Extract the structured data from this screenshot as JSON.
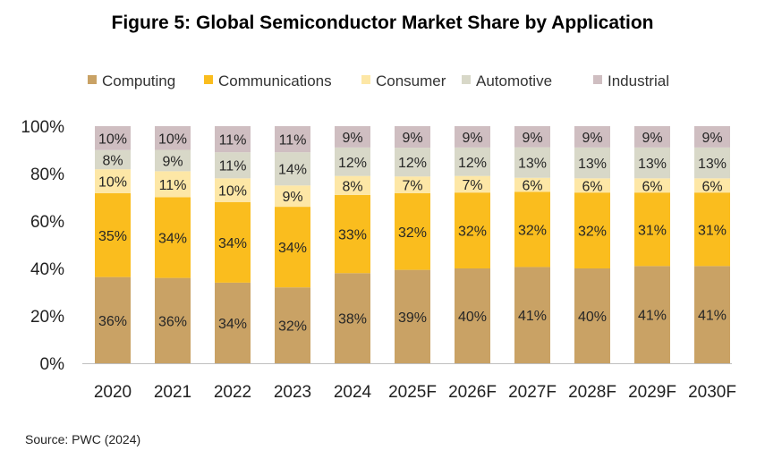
{
  "chart_data": {
    "type": "bar",
    "stacked": true,
    "title": "Figure 5: Global Semiconductor Market Share by Application",
    "categories": [
      "2020",
      "2021",
      "2022",
      "2023",
      "2024",
      "2025F",
      "2026F",
      "2027F",
      "2028F",
      "2029F",
      "2030F"
    ],
    "series": [
      {
        "name": "Computing",
        "color": "#C9A265",
        "values": [
          36,
          36,
          34,
          32,
          38,
          39,
          40,
          41,
          40,
          41,
          41
        ]
      },
      {
        "name": "Communications",
        "color": "#FABD1E",
        "values": [
          35,
          34,
          34,
          34,
          33,
          32,
          32,
          32,
          32,
          31,
          31
        ]
      },
      {
        "name": "Consumer",
        "color": "#FDE7A6",
        "values": [
          10,
          11,
          10,
          9,
          8,
          7,
          7,
          6,
          6,
          6,
          6
        ]
      },
      {
        "name": "Automotive",
        "color": "#D8D8C8",
        "values": [
          8,
          9,
          11,
          14,
          12,
          12,
          12,
          13,
          13,
          13,
          13
        ]
      },
      {
        "name": "Industrial",
        "color": "#CFBEC1",
        "values": [
          10,
          10,
          11,
          11,
          9,
          9,
          9,
          9,
          9,
          9,
          9
        ]
      }
    ],
    "ylim": [
      0,
      100
    ],
    "yticks": [
      "0%",
      "20%",
      "40%",
      "60%",
      "80%",
      "100%"
    ],
    "xlabel": "",
    "ylabel": "",
    "legend": "top",
    "grid": false
  },
  "source": "Source: PWC (2024)"
}
